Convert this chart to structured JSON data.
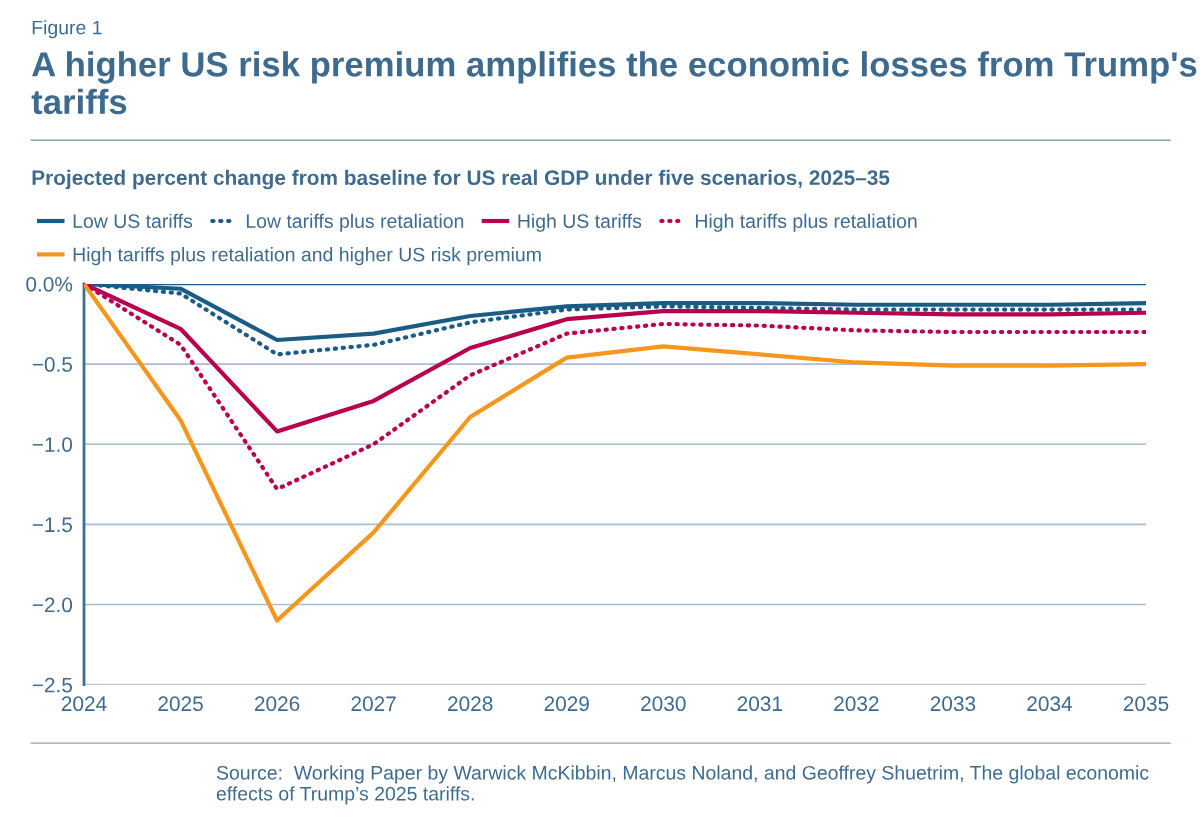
{
  "chart_data": {
    "type": "line",
    "title": "A higher US risk premium amplifies the economic losses from Trump's tariffs",
    "subtitle": "Projected percent change from baseline for US real GDP under five scenarios, 2025–35",
    "annotations": [
      "Figure 1",
      "Source:  Working Paper by Warwick McKibbin, Marcus Noland, and Geoffrey Shuetrim, The global economic effects of Trump’s 2025 tariffs."
    ],
    "x": [
      2024,
      2025,
      2026,
      2027,
      2028,
      2029,
      2030,
      2031,
      2032,
      2033,
      2034,
      2035
    ],
    "series": [
      {
        "name": "Low US tariffs",
        "color": "#1b5c85",
        "line_style": "solid",
        "values": [
          0,
          -0.03,
          -0.35,
          -0.31,
          -0.2,
          -0.14,
          -0.12,
          -0.12,
          -0.13,
          -0.13,
          -0.13,
          -0.12
        ]
      },
      {
        "name": "Low tariffs plus retaliation",
        "color": "#1b5c85",
        "line_style": "dotted",
        "values": [
          0,
          -0.06,
          -0.44,
          -0.38,
          -0.24,
          -0.16,
          -0.14,
          -0.15,
          -0.16,
          -0.16,
          -0.16,
          -0.16
        ]
      },
      {
        "name": "High US tariffs",
        "color": "#b8004f",
        "line_style": "solid",
        "values": [
          0,
          -0.28,
          -0.92,
          -0.73,
          -0.4,
          -0.22,
          -0.17,
          -0.17,
          -0.18,
          -0.19,
          -0.19,
          -0.18
        ]
      },
      {
        "name": "High tariffs plus retaliation",
        "color": "#b8004f",
        "line_style": "dotted",
        "values": [
          0,
          -0.38,
          -1.28,
          -1.0,
          -0.57,
          -0.31,
          -0.25,
          -0.26,
          -0.29,
          -0.3,
          -0.3,
          -0.3
        ]
      },
      {
        "name": "High tariffs plus retaliation and higher US risk premium",
        "color": "#f7961d",
        "line_style": "solid",
        "values": [
          0,
          -0.85,
          -2.1,
          -1.55,
          -0.83,
          -0.46,
          -0.39,
          -0.44,
          -0.49,
          -0.51,
          -0.51,
          -0.5
        ]
      }
    ],
    "xlim": [
      2024,
      2035
    ],
    "xticks": [
      2024,
      2025,
      2026,
      2027,
      2028,
      2029,
      2030,
      2031,
      2032,
      2033,
      2034,
      2035
    ],
    "ylim": [
      -2.5,
      0
    ],
    "yticks": [
      {
        "value": 0,
        "label": "0.0%"
      },
      {
        "value": -0.5,
        "label": "−0.5"
      },
      {
        "value": -1.0,
        "label": "−1.0"
      },
      {
        "value": -1.5,
        "label": "−1.5"
      },
      {
        "value": -2.0,
        "label": "−2.0"
      },
      {
        "value": -2.5,
        "label": "−2.5"
      }
    ],
    "ref_lines": [
      {
        "axis": "y",
        "value": 0,
        "color": "#1b5c85"
      }
    ],
    "grid": "y",
    "legend": "top",
    "marker": "none"
  }
}
